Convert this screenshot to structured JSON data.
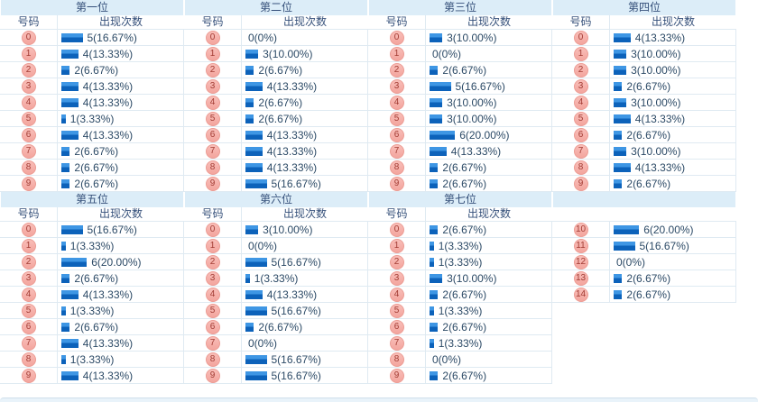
{
  "header_labels": {
    "num": "号码",
    "count": "出现次数"
  },
  "colors": {
    "header_band_bg": "#dcedf8",
    "header_text": "#35507a",
    "value_text": "#2c4a66",
    "row_border": "#dfeaf2",
    "bar_gradient_top": "#3e96e4",
    "bar_gradient_bottom": "#0c62ba",
    "badge_bg_top": "#f9beb8",
    "badge_bg_bottom": "#f3a59e",
    "badge_border": "#ec9c94",
    "badge_text": "#a23c34",
    "footer_bg": "#e9f3fa",
    "footer_border": "#cfdfeb"
  },
  "chart_data": [
    {
      "type": "bar",
      "title": "第一位",
      "has_headers": true,
      "categories": [
        "0",
        "1",
        "2",
        "3",
        "4",
        "5",
        "6",
        "7",
        "8",
        "9"
      ],
      "values": [
        5,
        4,
        2,
        4,
        4,
        1,
        4,
        2,
        2,
        2
      ],
      "value_labels": [
        "5(16.67%)",
        "4(13.33%)",
        "2(6.67%)",
        "4(13.33%)",
        "4(13.33%)",
        "1(3.33%)",
        "4(13.33%)",
        "2(6.67%)",
        "2(6.67%)",
        "2(6.67%)"
      ]
    },
    {
      "type": "bar",
      "title": "第二位",
      "has_headers": true,
      "categories": [
        "0",
        "1",
        "2",
        "3",
        "4",
        "5",
        "6",
        "7",
        "8",
        "9"
      ],
      "values": [
        0,
        3,
        2,
        4,
        2,
        2,
        4,
        4,
        4,
        5
      ],
      "value_labels": [
        "0(0%)",
        "3(10.00%)",
        "2(6.67%)",
        "4(13.33%)",
        "2(6.67%)",
        "2(6.67%)",
        "4(13.33%)",
        "4(13.33%)",
        "4(13.33%)",
        "5(16.67%)"
      ]
    },
    {
      "type": "bar",
      "title": "第三位",
      "has_headers": true,
      "categories": [
        "0",
        "1",
        "2",
        "3",
        "4",
        "5",
        "6",
        "7",
        "8",
        "9"
      ],
      "values": [
        3,
        0,
        2,
        5,
        3,
        3,
        6,
        4,
        2,
        2
      ],
      "value_labels": [
        "3(10.00%)",
        "0(0%)",
        "2(6.67%)",
        "5(16.67%)",
        "3(10.00%)",
        "3(10.00%)",
        "6(20.00%)",
        "4(13.33%)",
        "2(6.67%)",
        "2(6.67%)"
      ]
    },
    {
      "type": "bar",
      "title": "第四位",
      "has_headers": true,
      "categories": [
        "0",
        "1",
        "2",
        "3",
        "4",
        "5",
        "6",
        "7",
        "8",
        "9"
      ],
      "values": [
        4,
        3,
        3,
        2,
        3,
        4,
        2,
        3,
        4,
        2
      ],
      "value_labels": [
        "4(13.33%)",
        "3(10.00%)",
        "3(10.00%)",
        "2(6.67%)",
        "3(10.00%)",
        "4(13.33%)",
        "2(6.67%)",
        "3(10.00%)",
        "4(13.33%)",
        "2(6.67%)"
      ]
    },
    {
      "type": "bar",
      "title": "第五位",
      "has_headers": true,
      "categories": [
        "0",
        "1",
        "2",
        "3",
        "4",
        "5",
        "6",
        "7",
        "8",
        "9"
      ],
      "values": [
        5,
        1,
        6,
        2,
        4,
        1,
        2,
        4,
        1,
        4
      ],
      "value_labels": [
        "5(16.67%)",
        "1(3.33%)",
        "6(20.00%)",
        "2(6.67%)",
        "4(13.33%)",
        "1(3.33%)",
        "2(6.67%)",
        "4(13.33%)",
        "1(3.33%)",
        "4(13.33%)"
      ]
    },
    {
      "type": "bar",
      "title": "第六位",
      "has_headers": true,
      "categories": [
        "0",
        "1",
        "2",
        "3",
        "4",
        "5",
        "6",
        "7",
        "8",
        "9"
      ],
      "values": [
        3,
        0,
        5,
        1,
        4,
        5,
        2,
        0,
        5,
        5
      ],
      "value_labels": [
        "3(10.00%)",
        "0(0%)",
        "5(16.67%)",
        "1(3.33%)",
        "4(13.33%)",
        "5(16.67%)",
        "2(6.67%)",
        "0(0%)",
        "5(16.67%)",
        "5(16.67%)"
      ]
    },
    {
      "type": "bar",
      "title": "第七位",
      "has_headers": true,
      "categories": [
        "0",
        "1",
        "2",
        "3",
        "4",
        "5",
        "6",
        "7",
        "8",
        "9"
      ],
      "values": [
        2,
        1,
        1,
        3,
        2,
        1,
        2,
        1,
        0,
        2
      ],
      "value_labels": [
        "2(6.67%)",
        "1(3.33%)",
        "1(3.33%)",
        "3(10.00%)",
        "2(6.67%)",
        "1(3.33%)",
        "2(6.67%)",
        "1(3.33%)",
        "0(0%)",
        "2(6.67%)"
      ]
    },
    {
      "type": "bar",
      "title": "",
      "has_headers": false,
      "categories": [
        "10",
        "11",
        "12",
        "13",
        "14"
      ],
      "values": [
        6,
        5,
        0,
        2,
        2
      ],
      "value_labels": [
        "6(20.00%)",
        "5(16.67%)",
        "0(0%)",
        "2(6.67%)",
        "2(6.67%)"
      ]
    }
  ]
}
